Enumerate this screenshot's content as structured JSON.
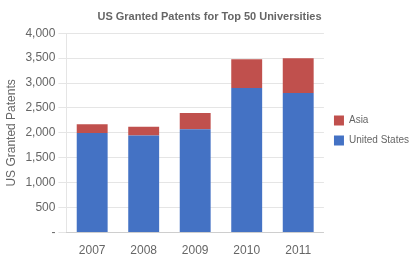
{
  "chart_data": {
    "type": "bar",
    "title": "US Granted Patents for Top 50 Universities",
    "categories": [
      "2007",
      "2008",
      "2009",
      "2010",
      "2011"
    ],
    "series": [
      {
        "name": "United States",
        "color": "#4472C4",
        "values": [
          2000,
          1950,
          2075,
          2900,
          2800
        ]
      },
      {
        "name": "Asia",
        "color": "#C0504D",
        "values": [
          175,
          175,
          325,
          575,
          700
        ]
      }
    ],
    "stacked": true,
    "ylabel": "US Granted Patents",
    "ylim": [
      0,
      4000
    ],
    "yticks": [
      {
        "value": 0,
        "label": "-"
      },
      500,
      {
        "value": 1000,
        "label": "1,000"
      },
      {
        "value": 1500,
        "label": "1,500"
      },
      {
        "value": 2000,
        "label": "2,000"
      },
      {
        "value": 2500,
        "label": "2,500"
      },
      {
        "value": 3000,
        "label": "3,000"
      },
      {
        "value": 3500,
        "label": "3,500"
      },
      {
        "value": 4000,
        "label": "4,000"
      }
    ],
    "grid": true,
    "legend": "right"
  }
}
